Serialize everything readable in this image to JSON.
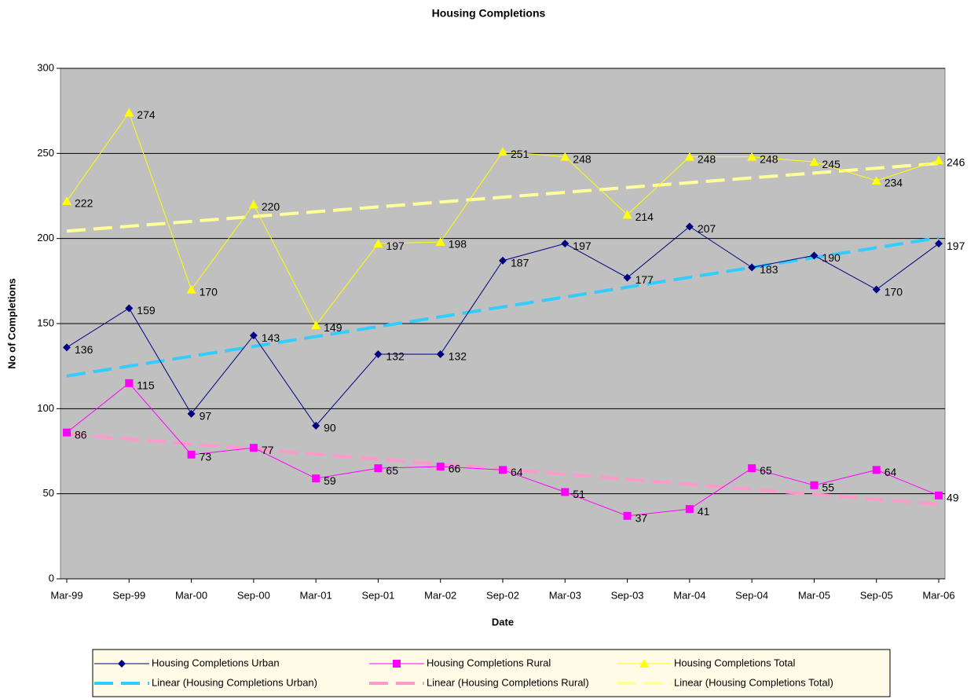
{
  "chart_data": {
    "type": "line",
    "title": "Housing Completions",
    "xlabel": "Date",
    "ylabel": "No of Completions",
    "categories": [
      "Mar-99",
      "Sep-99",
      "Mar-00",
      "Sep-00",
      "Mar-01",
      "Sep-01",
      "Mar-02",
      "Sep-02",
      "Mar-03",
      "Sep-03",
      "Mar-04",
      "Sep-04",
      "Mar-05",
      "Sep-05",
      "Mar-06"
    ],
    "ylim": [
      0,
      300
    ],
    "yticks": [
      0,
      50,
      100,
      150,
      200,
      250,
      300
    ],
    "grid": true,
    "legend": "bottom",
    "series": [
      {
        "name": "Housing Completions Urban",
        "color": "#000080",
        "marker": "diamond",
        "values": [
          136,
          159,
          97,
          143,
          90,
          132,
          132,
          187,
          197,
          177,
          207,
          183,
          190,
          170,
          197
        ],
        "trendline": {
          "type": "linear",
          "name": "Linear (Housing Completions Urban)",
          "color": "#33ccff"
        }
      },
      {
        "name": "Housing Completions Rural",
        "color": "#ff00ff",
        "marker": "square",
        "values": [
          86,
          115,
          73,
          77,
          59,
          65,
          66,
          64,
          51,
          37,
          41,
          65,
          55,
          64,
          49
        ],
        "trendline": {
          "type": "linear",
          "name": "Linear (Housing Completions Rural)",
          "color": "#ff99cc"
        }
      },
      {
        "name": "Housing Completions Total",
        "color": "#ffff00",
        "marker": "triangle",
        "values": [
          222,
          274,
          170,
          220,
          149,
          197,
          198,
          251,
          248,
          214,
          248,
          248,
          245,
          234,
          246
        ],
        "trendline": {
          "type": "linear",
          "name": "Linear (Housing Completions Total)",
          "color": "#ffff99"
        }
      }
    ]
  }
}
